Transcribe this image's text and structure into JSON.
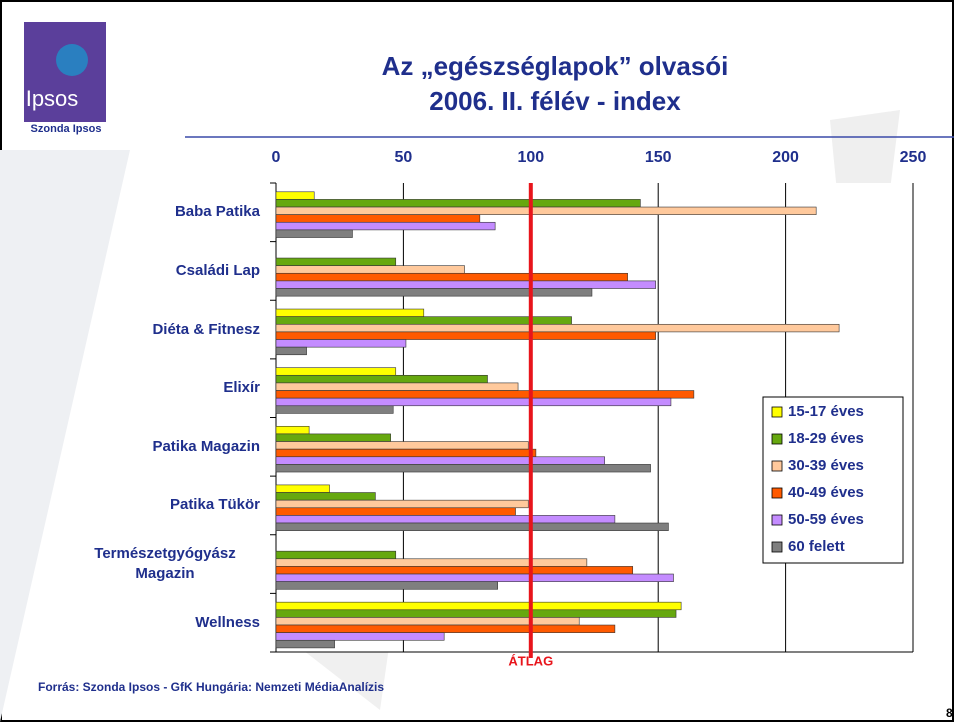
{
  "header": {
    "logo": "Ipsos",
    "logo_caption": "Szonda Ipsos"
  },
  "chart_data": {
    "type": "bar",
    "orientation": "horizontal",
    "title": [
      "Az „egészséglapok” olvasói",
      "2006. II. félév - index"
    ],
    "categories": [
      "Baba Patika",
      "Családi Lap",
      "Diéta & Fitnesz",
      "Elixír",
      "Patika Magazin",
      "Patika Tükör",
      "Természetgyógyász Magazin",
      "Wellness"
    ],
    "series": [
      {
        "name": "15-17 éves",
        "color": "#ffff00",
        "values": [
          15,
          null,
          58,
          47,
          13,
          21,
          null,
          159
        ]
      },
      {
        "name": "18-29 éves",
        "color": "#66a80f",
        "values": [
          143,
          47,
          116,
          83,
          45,
          39,
          47,
          157
        ]
      },
      {
        "name": "30-39 éves",
        "color": "#ffc99c",
        "values": [
          212,
          74,
          221,
          95,
          99,
          99,
          122,
          119
        ]
      },
      {
        "name": "40-49 éves",
        "color": "#ff5a00",
        "values": [
          80,
          138,
          149,
          164,
          102,
          94,
          140,
          133
        ]
      },
      {
        "name": "50-59 éves",
        "color": "#c48cff",
        "values": [
          86,
          149,
          51,
          155,
          129,
          133,
          156,
          66
        ]
      },
      {
        "name": "60 felett",
        "color": "#7f7f7f",
        "values": [
          30,
          124,
          12,
          46,
          147,
          154,
          87,
          23
        ]
      }
    ],
    "xlim": [
      0,
      250
    ],
    "xticks": [
      0,
      50,
      100,
      150,
      200,
      250
    ],
    "grid": true,
    "reference_line": {
      "value": 100,
      "label": "ÁTLAG",
      "color": "#e8141b"
    },
    "legend": "right"
  },
  "footer": {
    "source": "Forrás: Szonda Ipsos - GfK Hungária: Nemzeti MédiaAnalízis",
    "page_number": "8"
  }
}
